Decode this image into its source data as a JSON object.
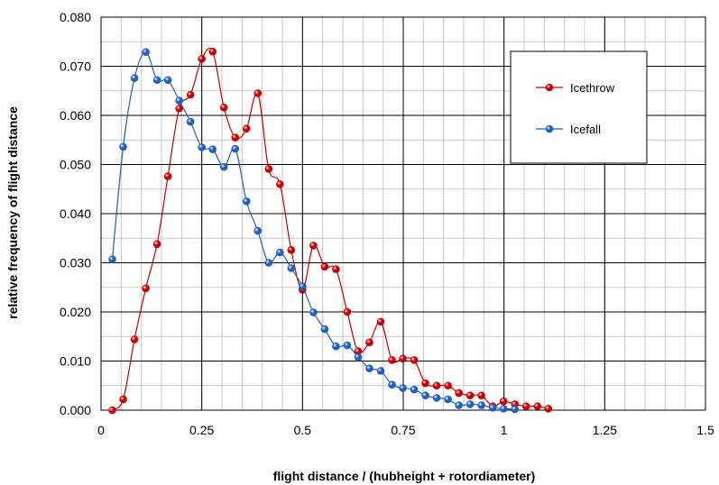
{
  "chart_data": {
    "type": "line",
    "title": "",
    "xlabel": "flight distance / (hubheight + rotordiameter)",
    "ylabel": "relative frequency of flight distance",
    "xlim": [
      0,
      1.5
    ],
    "ylim": [
      0,
      0.08
    ],
    "x_ticks": [
      "0",
      "0.25",
      "0.5",
      "0.75",
      "1",
      "1.25",
      "1.5"
    ],
    "y_ticks": [
      "0.000",
      "0.010",
      "0.020",
      "0.030",
      "0.040",
      "0.050",
      "0.060",
      "0.070",
      "0.080"
    ],
    "grid": true,
    "legend_position": "top-right",
    "series": [
      {
        "name": "Icethrow",
        "color": "#cc0000",
        "x": [
          0.028,
          0.055,
          0.083,
          0.111,
          0.139,
          0.166,
          0.194,
          0.222,
          0.25,
          0.277,
          0.305,
          0.333,
          0.361,
          0.389,
          0.416,
          0.444,
          0.472,
          0.5,
          0.527,
          0.555,
          0.583,
          0.611,
          0.638,
          0.666,
          0.694,
          0.722,
          0.749,
          0.777,
          0.805,
          0.833,
          0.861,
          0.888,
          0.916,
          0.944,
          0.972,
          0.999,
          1.027,
          1.055,
          1.083,
          1.11
        ],
        "values": [
          0.0,
          0.0022,
          0.0144,
          0.0248,
          0.0338,
          0.0476,
          0.0614,
          0.0642,
          0.0715,
          0.073,
          0.0616,
          0.0555,
          0.0573,
          0.0645,
          0.0491,
          0.046,
          0.0326,
          0.0245,
          0.0335,
          0.0292,
          0.0287,
          0.02,
          0.012,
          0.0138,
          0.018,
          0.0102,
          0.0105,
          0.0102,
          0.0055,
          0.005,
          0.005,
          0.0035,
          0.003,
          0.003,
          0.0008,
          0.0018,
          0.0012,
          0.0008,
          0.0008,
          0.0003
        ]
      },
      {
        "name": "Icefall",
        "color": "#1f5fbf",
        "x": [
          0.028,
          0.055,
          0.083,
          0.111,
          0.139,
          0.166,
          0.194,
          0.222,
          0.25,
          0.277,
          0.305,
          0.333,
          0.361,
          0.389,
          0.416,
          0.444,
          0.472,
          0.5,
          0.527,
          0.555,
          0.583,
          0.611,
          0.638,
          0.666,
          0.694,
          0.722,
          0.749,
          0.777,
          0.805,
          0.833,
          0.861,
          0.888,
          0.916,
          0.944,
          0.972,
          0.999,
          1.027
        ],
        "values": [
          0.0307,
          0.0536,
          0.0676,
          0.0729,
          0.0672,
          0.0672,
          0.063,
          0.0587,
          0.0535,
          0.0531,
          0.0495,
          0.0532,
          0.0425,
          0.0365,
          0.03,
          0.0321,
          0.0289,
          0.0252,
          0.0199,
          0.0165,
          0.013,
          0.0132,
          0.0108,
          0.0085,
          0.008,
          0.0052,
          0.0045,
          0.0042,
          0.003,
          0.0025,
          0.0022,
          0.001,
          0.0012,
          0.001,
          0.0005,
          0.0003,
          0.0002
        ]
      }
    ]
  }
}
